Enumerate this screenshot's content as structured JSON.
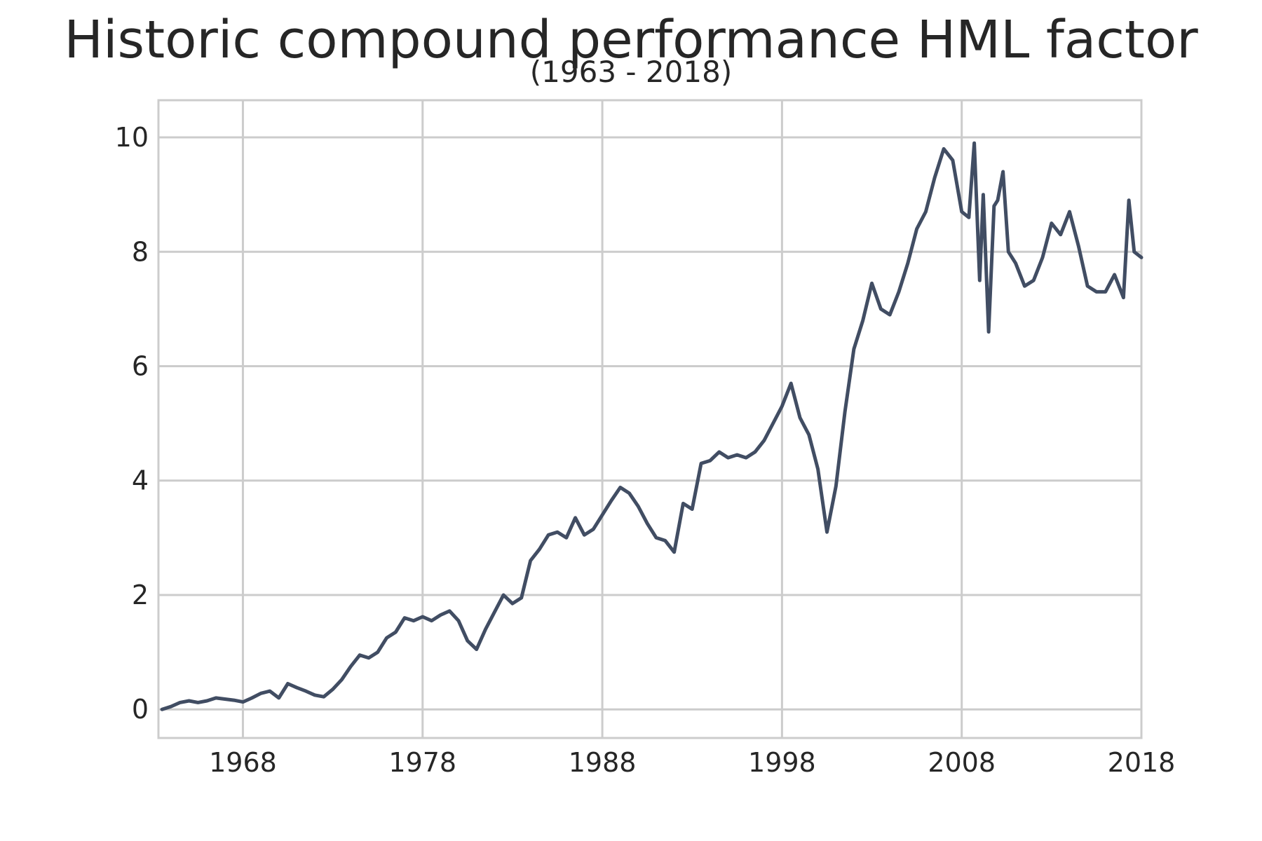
{
  "chart_data": {
    "type": "line",
    "title": "Historic compound performance HML factor",
    "subtitle": "(1963 - 2018)",
    "xlabel": "",
    "ylabel": "",
    "xlim": [
      1963.3,
      2018.0
    ],
    "ylim": [
      -0.5,
      10.65
    ],
    "grid": true,
    "legend": "none",
    "xticks": [
      1968,
      1978,
      1988,
      1998,
      2008,
      2018
    ],
    "xtick_labels": [
      "1968",
      "1978",
      "1988",
      "1998",
      "2008",
      "2018"
    ],
    "yticks": [
      0,
      2,
      4,
      6,
      8,
      10
    ],
    "ytick_labels": [
      "0",
      "2",
      "4",
      "6",
      "8",
      "10"
    ],
    "line_color": "#414d63",
    "grid_color": "#cccccc",
    "series": [
      {
        "name": "HML",
        "x": [
          1963.5,
          1964.0,
          1964.5,
          1965.0,
          1965.5,
          1966.0,
          1966.5,
          1967.0,
          1967.5,
          1968.0,
          1968.5,
          1969.0,
          1969.5,
          1970.0,
          1970.5,
          1971.0,
          1971.5,
          1972.0,
          1972.5,
          1973.0,
          1973.5,
          1974.0,
          1974.5,
          1975.0,
          1975.5,
          1976.0,
          1976.5,
          1977.0,
          1977.5,
          1978.0,
          1978.5,
          1979.0,
          1979.5,
          1980.0,
          1980.5,
          1981.0,
          1981.5,
          1982.0,
          1982.5,
          1983.0,
          1983.5,
          1984.0,
          1984.5,
          1985.0,
          1985.5,
          1986.0,
          1986.5,
          1987.0,
          1987.5,
          1988.0,
          1988.5,
          1989.0,
          1989.5,
          1990.0,
          1990.5,
          1991.0,
          1991.5,
          1992.0,
          1992.5,
          1993.0,
          1993.5,
          1994.0,
          1994.5,
          1995.0,
          1995.5,
          1996.0,
          1996.5,
          1997.0,
          1997.5,
          1998.0,
          1998.5,
          1999.0,
          1999.5,
          2000.0,
          2000.5,
          2001.0,
          2001.5,
          2002.0,
          2002.5,
          2003.0,
          2003.5,
          2004.0,
          2004.5,
          2005.0,
          2005.5,
          2006.0,
          2006.5,
          2007.0,
          2007.5,
          2008.0,
          2008.4,
          2008.7,
          2009.0,
          2009.2,
          2009.5,
          2009.8,
          2010.0,
          2010.3,
          2010.6,
          2011.0,
          2011.5,
          2012.0,
          2012.5,
          2013.0,
          2013.5,
          2014.0,
          2014.5,
          2015.0,
          2015.5,
          2016.0,
          2016.5,
          2017.0,
          2017.3,
          2017.6,
          2018.0
        ],
        "values": [
          0.0,
          0.05,
          0.12,
          0.15,
          0.12,
          0.15,
          0.2,
          0.18,
          0.16,
          0.13,
          0.2,
          0.28,
          0.32,
          0.2,
          0.45,
          0.38,
          0.32,
          0.25,
          0.22,
          0.35,
          0.52,
          0.75,
          0.95,
          0.9,
          1.0,
          1.25,
          1.35,
          1.6,
          1.55,
          1.62,
          1.55,
          1.65,
          1.72,
          1.55,
          1.2,
          1.05,
          1.4,
          1.7,
          2.0,
          1.85,
          1.95,
          2.6,
          2.8,
          3.05,
          3.1,
          3.0,
          3.35,
          3.05,
          3.15,
          3.4,
          3.65,
          3.88,
          3.78,
          3.55,
          3.25,
          3.0,
          2.95,
          2.75,
          3.6,
          3.5,
          4.3,
          4.35,
          4.5,
          4.4,
          4.45,
          4.4,
          4.5,
          4.7,
          5.0,
          5.3,
          5.7,
          5.1,
          4.8,
          4.2,
          3.1,
          3.9,
          5.2,
          6.3,
          6.8,
          7.45,
          7.0,
          6.9,
          7.3,
          7.8,
          8.4,
          8.7,
          9.3,
          9.8,
          9.6,
          8.7,
          8.6,
          9.9,
          7.5,
          9.0,
          6.6,
          8.8,
          8.9,
          9.4,
          8.0,
          7.8,
          7.4,
          7.5,
          7.9,
          8.5,
          8.3,
          8.7,
          8.1,
          7.4,
          7.3,
          7.3,
          7.6,
          7.2,
          8.9,
          8.0,
          7.9
        ]
      }
    ]
  }
}
